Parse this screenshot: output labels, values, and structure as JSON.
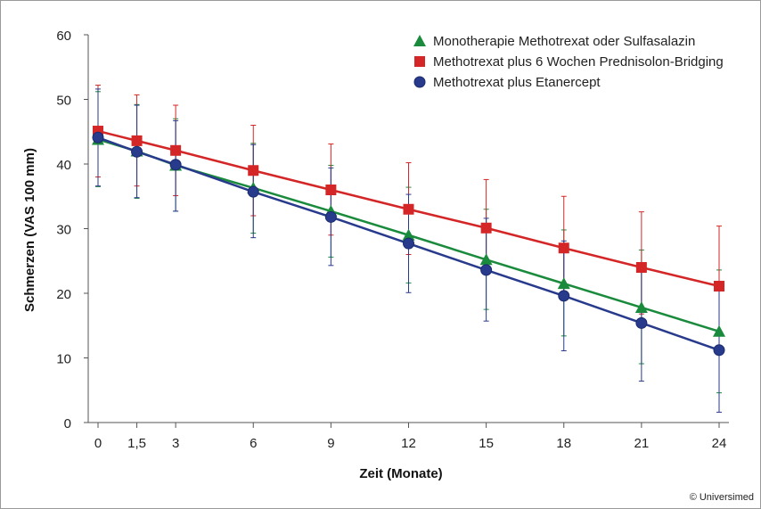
{
  "chart_data": {
    "type": "line",
    "xlabel": "Zeit (Monate)",
    "ylabel": "Schmerzen (VAS 100 mm)",
    "x": [
      0,
      1.5,
      3,
      6,
      9,
      12,
      15,
      18,
      21,
      24
    ],
    "x_tick_labels": [
      "0",
      "1,5",
      "3",
      "6",
      "9",
      "12",
      "15",
      "18",
      "21",
      "24"
    ],
    "y_ticks": [
      0,
      10,
      20,
      30,
      40,
      50,
      60
    ],
    "ylim": [
      0,
      60
    ],
    "legend_position": "top-right",
    "series": [
      {
        "name": "Monotherapie Methotrexat oder Sulfasalazin",
        "color": "#1a8a3c",
        "marker": "triangle",
        "values": [
          43.8,
          42.0,
          39.8,
          36.3,
          32.7,
          29.0,
          25.2,
          21.5,
          17.8,
          14.1
        ],
        "err_low": [
          36.5,
          34.7,
          32.7,
          29.3,
          25.6,
          21.6,
          17.5,
          13.4,
          9.1,
          4.6
        ],
        "err_high": [
          51.2,
          49.2,
          47.0,
          43.2,
          39.8,
          36.4,
          33.0,
          29.8,
          26.7,
          23.6
        ]
      },
      {
        "name": "Methotrexat plus 6 Wochen Prednisolon-Bridging",
        "color": "#d42626",
        "marker": "square",
        "values": [
          45.1,
          43.6,
          42.1,
          39.0,
          36.0,
          33.0,
          30.1,
          27.0,
          24.0,
          21.1
        ],
        "err_low": [
          38.0,
          36.6,
          35.1,
          32.0,
          29.0,
          26.0,
          23.0,
          19.9,
          16.8,
          13.5
        ],
        "err_high": [
          52.2,
          50.7,
          49.1,
          46.0,
          43.1,
          40.2,
          37.6,
          35.0,
          32.6,
          30.4
        ]
      },
      {
        "name": "Methotrexat plus Etanercept",
        "color": "#283a8c",
        "marker": "circle",
        "values": [
          44.1,
          41.9,
          39.9,
          35.7,
          31.8,
          27.7,
          23.6,
          19.6,
          15.4,
          11.2
        ],
        "err_low": [
          36.6,
          34.8,
          32.7,
          28.6,
          24.3,
          20.1,
          15.7,
          11.1,
          6.4,
          1.6
        ],
        "err_high": [
          51.6,
          49.1,
          46.7,
          43.0,
          39.4,
          35.3,
          31.6,
          28.1,
          24.6,
          21.1
        ]
      }
    ]
  },
  "copyright": "© Universimed"
}
